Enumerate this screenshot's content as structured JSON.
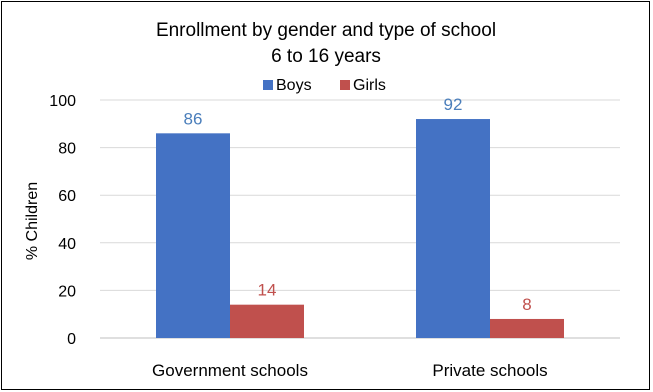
{
  "chart_data": {
    "type": "bar",
    "title": "Enrollment by gender and type of school",
    "subtitle": "6 to 16 years",
    "ylabel": "% Children",
    "ylim": [
      0,
      100
    ],
    "yticks": [
      0,
      20,
      40,
      60,
      80,
      100
    ],
    "grid": true,
    "legend_position": "top",
    "categories": [
      "Government schools",
      "Private schools"
    ],
    "series": [
      {
        "name": "Boys",
        "color": "#4472c4",
        "label_color": "#4a7ebb",
        "values": [
          86,
          92
        ]
      },
      {
        "name": "Girls",
        "color": "#c0504d",
        "label_color": "#c0504d",
        "values": [
          14,
          8
        ]
      }
    ]
  }
}
